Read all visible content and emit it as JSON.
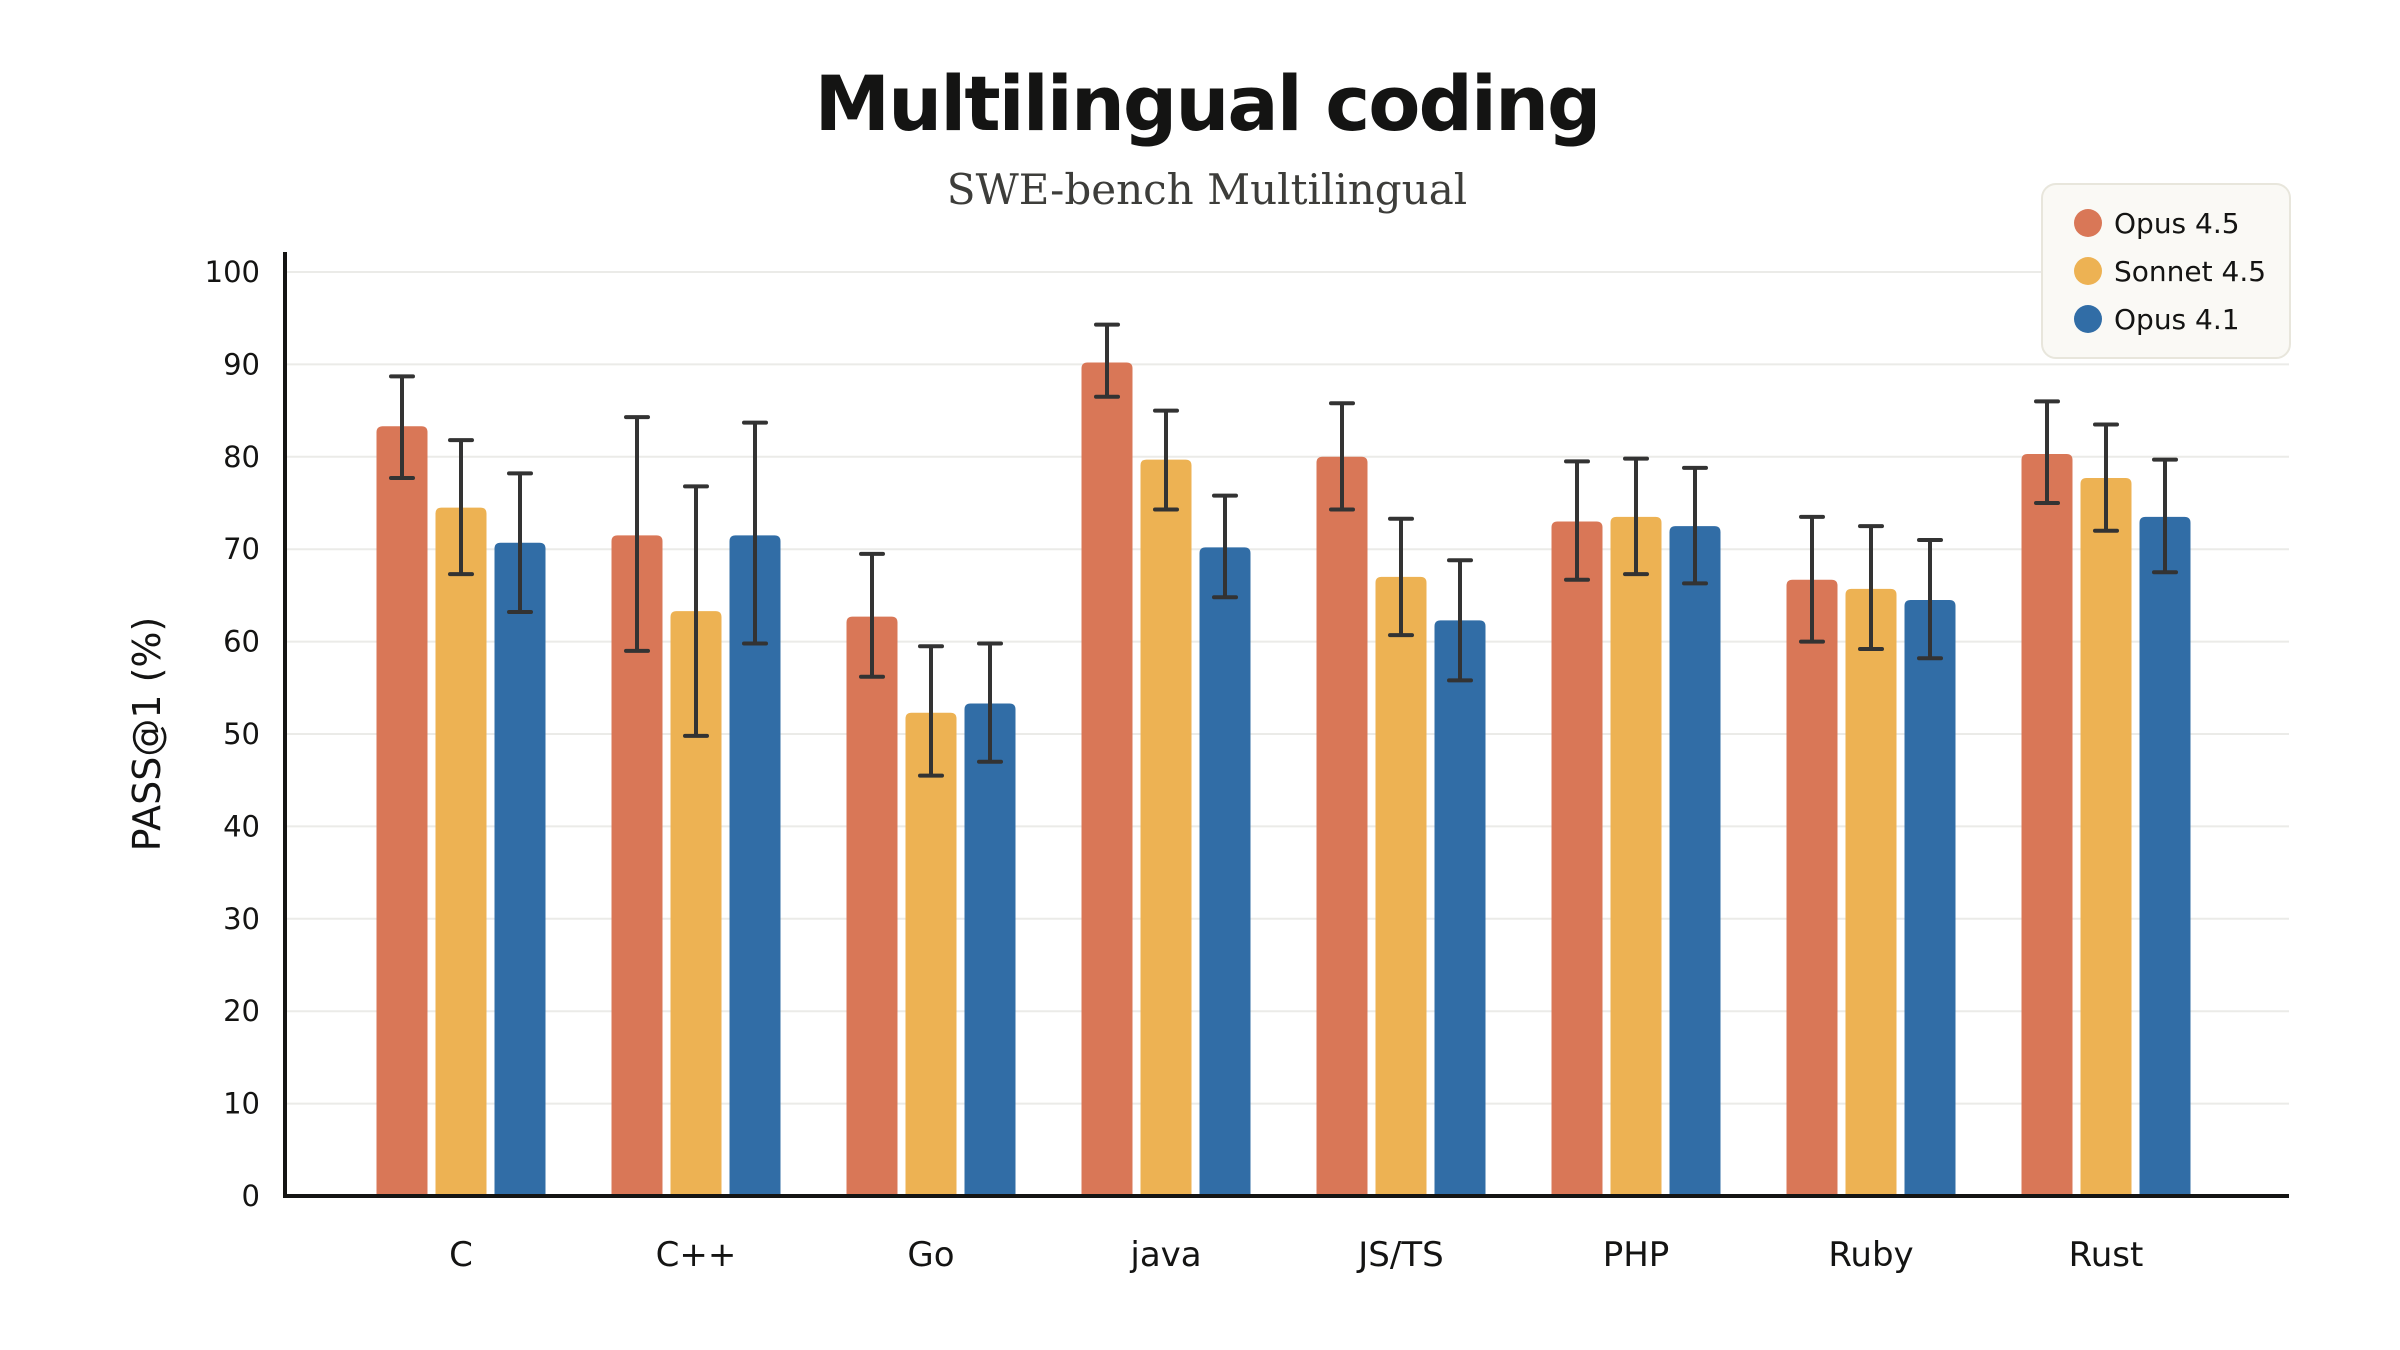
{
  "chart_data": {
    "type": "bar",
    "title": "Multilingual coding",
    "subtitle": "SWE-bench Multilingual",
    "xlabel": "",
    "ylabel": "PASS@1 (%)",
    "ylim": [
      0,
      100
    ],
    "yticks": [
      0,
      10,
      20,
      30,
      40,
      50,
      60,
      70,
      80,
      90,
      100
    ],
    "grid": true,
    "legend_position": "top-right",
    "categories": [
      "C",
      "C++",
      "Go",
      "java",
      "JS/TS",
      "PHP",
      "Ruby",
      "Rust"
    ],
    "series": [
      {
        "name": "Opus 4.5",
        "color": "#D97757",
        "values": [
          83.3,
          71.5,
          62.7,
          90.2,
          80.0,
          73.0,
          66.7,
          80.3
        ],
        "error_low": [
          77.7,
          59.0,
          56.2,
          86.5,
          74.3,
          66.7,
          60.0,
          75.0
        ],
        "error_high": [
          88.7,
          84.3,
          69.5,
          94.3,
          85.8,
          79.5,
          73.5,
          86.0
        ]
      },
      {
        "name": "Sonnet 4.5",
        "color": "#EDB253",
        "values": [
          74.5,
          63.3,
          52.3,
          79.7,
          67.0,
          73.5,
          65.7,
          77.7
        ],
        "error_low": [
          67.3,
          49.8,
          45.5,
          74.3,
          60.7,
          67.3,
          59.2,
          72.0
        ],
        "error_high": [
          81.8,
          76.8,
          59.5,
          85.0,
          73.3,
          79.8,
          72.5,
          83.5
        ]
      },
      {
        "name": "Opus 4.1",
        "color": "#316DA6",
        "values": [
          70.7,
          71.5,
          53.3,
          70.2,
          62.3,
          72.5,
          64.5,
          73.5
        ],
        "error_low": [
          63.2,
          59.8,
          47.0,
          64.8,
          55.8,
          66.3,
          58.2,
          67.5
        ],
        "error_high": [
          78.2,
          83.7,
          59.8,
          75.8,
          68.8,
          78.8,
          71.0,
          79.7
        ]
      }
    ]
  }
}
